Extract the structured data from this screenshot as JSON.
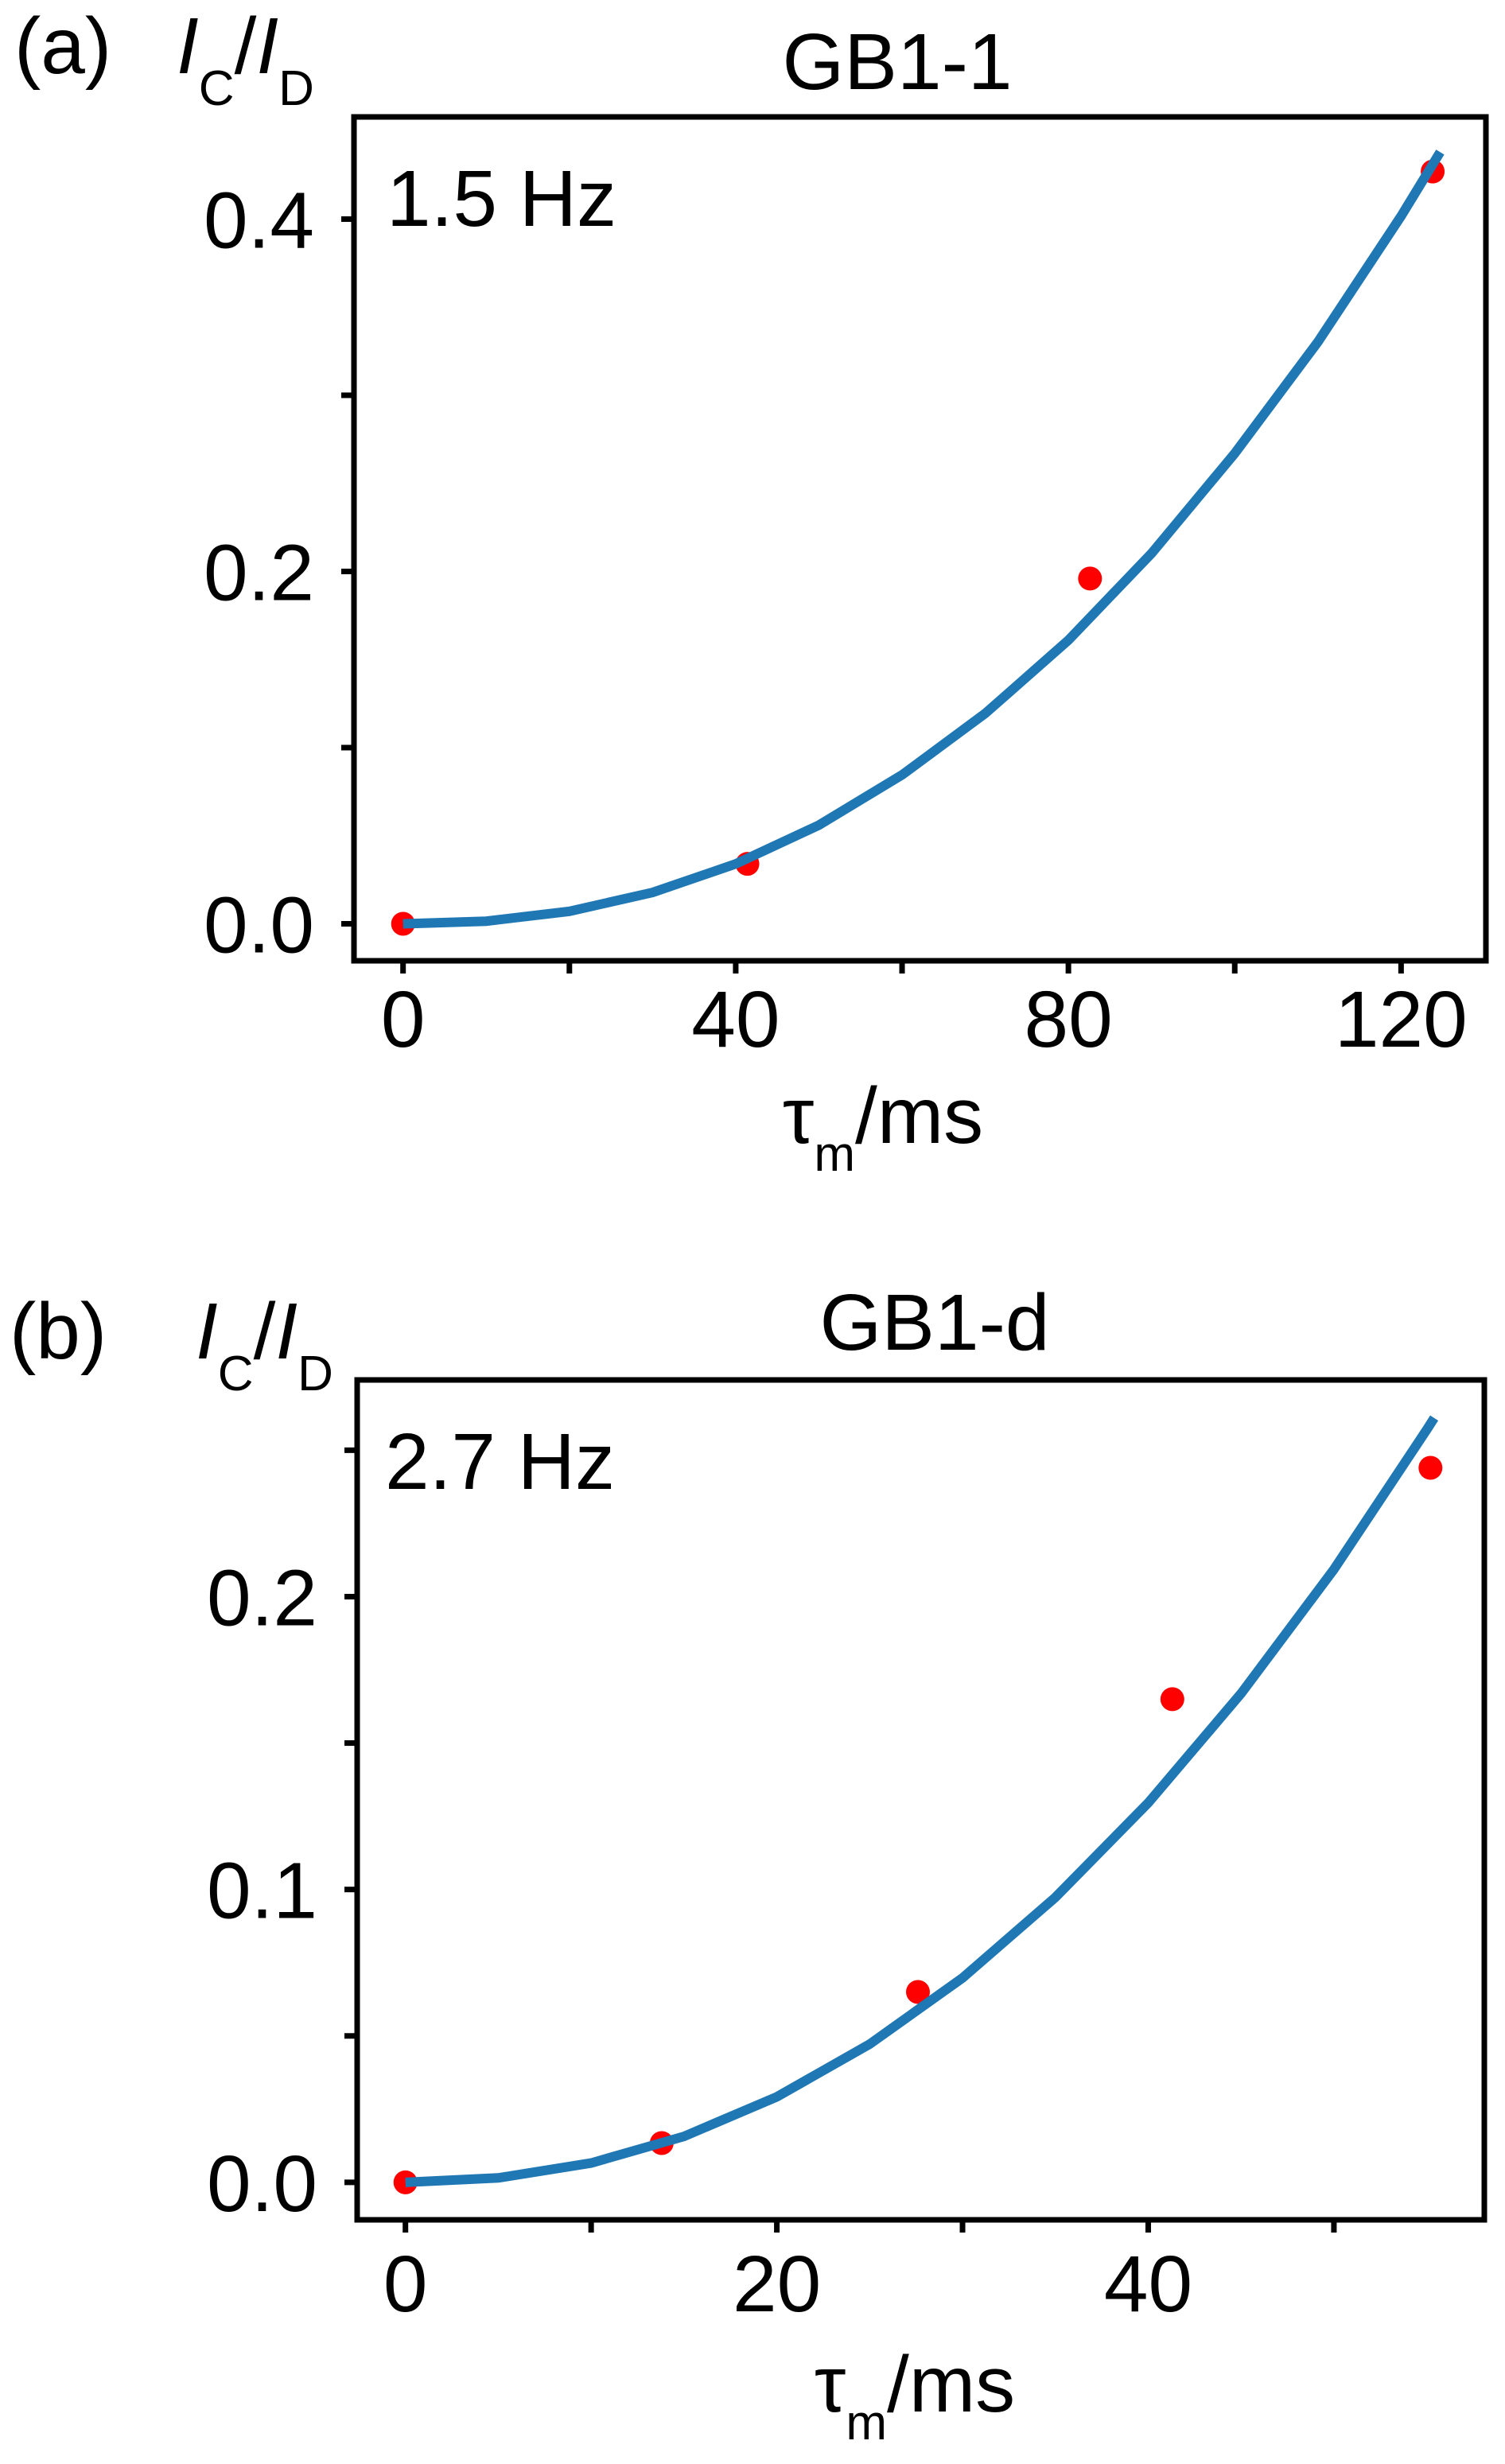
{
  "chart_data": [
    {
      "type": "scatter",
      "panel_label": "(a)",
      "title": "GB1-1",
      "annotation": "1.5 Hz",
      "ylabel": {
        "main1": "I",
        "sub1": "C",
        "slash": "/",
        "main2": "I",
        "sub2": "D"
      },
      "xlabel": {
        "main": "τ",
        "sub": "m",
        "rest": "/ms"
      },
      "xlim": [
        -5.9,
        130.2
      ],
      "ylim": [
        -0.021,
        0.458
      ],
      "xticks": [
        0,
        40,
        80,
        120
      ],
      "xtick_labels": [
        "0",
        "40",
        "80",
        "120"
      ],
      "xminor": [
        20,
        60,
        100
      ],
      "yticks": [
        0.0,
        0.2,
        0.4
      ],
      "ytick_labels": [
        "0.0",
        "0.2",
        "0.4"
      ],
      "yminor": [
        0.1,
        0.3
      ],
      "grid": false,
      "points": {
        "color": "#ff0000",
        "x": [
          0,
          41.4,
          82.6,
          123.8
        ],
        "y": [
          0.0,
          0.034,
          0.196,
          0.427
        ]
      },
      "fit": {
        "color": "#1f77b4",
        "x": [
          0,
          10,
          20,
          30,
          40,
          50,
          60,
          70,
          80,
          90,
          100,
          110,
          120,
          124.7
        ],
        "y": [
          0,
          0.0015,
          0.0071,
          0.0178,
          0.034,
          0.056,
          0.0845,
          0.1194,
          0.161,
          0.2103,
          0.267,
          0.3303,
          0.4017,
          0.438
        ]
      }
    },
    {
      "type": "scatter",
      "panel_label": "(b)",
      "title": "GB1-d",
      "annotation": "2.7 Hz",
      "ylabel": {
        "main1": "I",
        "sub1": "C",
        "slash": "/",
        "main2": "I",
        "sub2": "D"
      },
      "xlabel": {
        "main": "τ",
        "sub": "m",
        "rest": "/ms"
      },
      "xlim": [
        -2.6,
        58.1
      ],
      "ylim": [
        -0.0128,
        0.274
      ],
      "xticks": [
        0,
        20,
        40
      ],
      "xtick_labels": [
        "0",
        "20",
        "40"
      ],
      "xminor": [
        10,
        30,
        50
      ],
      "yticks": [
        0.0,
        0.1,
        0.2
      ],
      "ytick_labels": [
        "0.0",
        "0.1",
        "0.2"
      ],
      "yminor": [
        0.05,
        0.15,
        0.25
      ],
      "grid": false,
      "points": {
        "color": "#ff0000",
        "x": [
          0,
          13.8,
          27.6,
          41.3,
          55.2
        ],
        "y": [
          0.0,
          0.0134,
          0.065,
          0.165,
          0.244
        ]
      },
      "fit": {
        "color": "#1f77b4",
        "x": [
          0,
          5,
          10,
          15,
          20,
          25,
          30,
          35,
          40,
          45,
          50,
          55,
          55.4
        ],
        "y": [
          0,
          0.0015,
          0.0066,
          0.0157,
          0.0292,
          0.0472,
          0.0698,
          0.0973,
          0.1296,
          0.1669,
          0.2093,
          0.257,
          0.261
        ]
      }
    }
  ]
}
